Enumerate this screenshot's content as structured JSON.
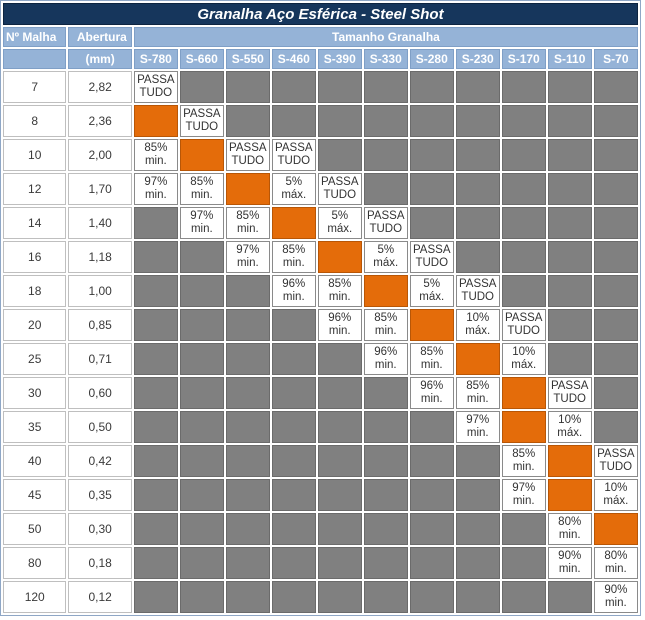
{
  "title": "Granalha Aço Esférica - Steel Shot",
  "header": {
    "mesh_label": "Nº Malha",
    "opening_label": "Abertura",
    "opening_unit": "(mm)",
    "sizes_label": "Tamanho Granalha"
  },
  "sizes": [
    "S-780",
    "S-660",
    "S-550",
    "S-460",
    "S-390",
    "S-330",
    "S-280",
    "S-230",
    "S-170",
    "S-110",
    "S-70"
  ],
  "colors": {
    "title_bg": "#16365c",
    "header_bg": "#95b3d7",
    "gray": "#808080",
    "orange": "#e46c0a"
  },
  "rows": [
    {
      "mesh": "7",
      "opening": "2,82",
      "cells": [
        [
          "PASSA",
          "TUDO"
        ],
        "g",
        "g",
        "g",
        "g",
        "g",
        "g",
        "g",
        "g",
        "g",
        "g"
      ]
    },
    {
      "mesh": "8",
      "opening": "2,36",
      "cells": [
        "o",
        [
          "PASSA",
          "TUDO"
        ],
        "g",
        "g",
        "g",
        "g",
        "g",
        "g",
        "g",
        "g",
        "g"
      ]
    },
    {
      "mesh": "10",
      "opening": "2,00",
      "cells": [
        [
          "85%",
          "min."
        ],
        "o",
        [
          "PASSA",
          "TUDO"
        ],
        [
          "PASSA",
          "TUDO"
        ],
        "g",
        "g",
        "g",
        "g",
        "g",
        "g",
        "g"
      ]
    },
    {
      "mesh": "12",
      "opening": "1,70",
      "cells": [
        [
          "97%",
          "min."
        ],
        [
          "85%",
          "min."
        ],
        "o",
        [
          "5%",
          "máx."
        ],
        [
          "PASSA",
          "TUDO"
        ],
        "g",
        "g",
        "g",
        "g",
        "g",
        "g"
      ]
    },
    {
      "mesh": "14",
      "opening": "1,40",
      "cells": [
        "g",
        [
          "97%",
          "min."
        ],
        [
          "85%",
          "min."
        ],
        "o",
        [
          "5%",
          "máx."
        ],
        [
          "PASSA",
          "TUDO"
        ],
        "g",
        "g",
        "g",
        "g",
        "g"
      ]
    },
    {
      "mesh": "16",
      "opening": "1,18",
      "cells": [
        "g",
        "g",
        [
          "97%",
          "min."
        ],
        [
          "85%",
          "min."
        ],
        "o",
        [
          "5%",
          "máx."
        ],
        [
          "PASSA",
          "TUDO"
        ],
        "g",
        "g",
        "g",
        "g"
      ]
    },
    {
      "mesh": "18",
      "opening": "1,00",
      "cells": [
        "g",
        "g",
        "g",
        [
          "96%",
          "min."
        ],
        [
          "85%",
          "min."
        ],
        "o",
        [
          "5%",
          "máx."
        ],
        [
          "PASSA",
          "TUDO"
        ],
        "g",
        "g",
        "g"
      ]
    },
    {
      "mesh": "20",
      "opening": "0,85",
      "cells": [
        "g",
        "g",
        "g",
        "g",
        [
          "96%",
          "min."
        ],
        [
          "85%",
          "min."
        ],
        "o",
        [
          "10%",
          "máx."
        ],
        [
          "PASSA",
          "TUDO"
        ],
        "g",
        "g"
      ]
    },
    {
      "mesh": "25",
      "opening": "0,71",
      "cells": [
        "g",
        "g",
        "g",
        "g",
        "g",
        [
          "96%",
          "min."
        ],
        [
          "85%",
          "min."
        ],
        "o",
        [
          "10%",
          "máx."
        ],
        "g",
        "g"
      ]
    },
    {
      "mesh": "30",
      "opening": "0,60",
      "cells": [
        "g",
        "g",
        "g",
        "g",
        "g",
        "g",
        [
          "96%",
          "min."
        ],
        [
          "85%",
          "min."
        ],
        "o",
        [
          "PASSA",
          "TUDO"
        ],
        "g"
      ]
    },
    {
      "mesh": "35",
      "opening": "0,50",
      "cells": [
        "g",
        "g",
        "g",
        "g",
        "g",
        "g",
        "g",
        [
          "97%",
          "min."
        ],
        "o",
        [
          "10%",
          "máx."
        ],
        "g"
      ]
    },
    {
      "mesh": "40",
      "opening": "0,42",
      "cells": [
        "g",
        "g",
        "g",
        "g",
        "g",
        "g",
        "g",
        "g",
        [
          "85%",
          "min."
        ],
        "o",
        [
          "PASSA",
          "TUDO"
        ]
      ]
    },
    {
      "mesh": "45",
      "opening": "0,35",
      "cells": [
        "g",
        "g",
        "g",
        "g",
        "g",
        "g",
        "g",
        "g",
        [
          "97%",
          "min."
        ],
        "o",
        [
          "10%",
          "máx."
        ]
      ]
    },
    {
      "mesh": "50",
      "opening": "0,30",
      "cells": [
        "g",
        "g",
        "g",
        "g",
        "g",
        "g",
        "g",
        "g",
        "g",
        [
          "80%",
          "min."
        ],
        "o"
      ]
    },
    {
      "mesh": "80",
      "opening": "0,18",
      "cells": [
        "g",
        "g",
        "g",
        "g",
        "g",
        "g",
        "g",
        "g",
        "g",
        [
          "90%",
          "min."
        ],
        [
          "80%",
          "min."
        ]
      ]
    },
    {
      "mesh": "120",
      "opening": "0,12",
      "cells": [
        "g",
        "g",
        "g",
        "g",
        "g",
        "g",
        "g",
        "g",
        "g",
        "g",
        [
          "90%",
          "min."
        ]
      ]
    }
  ]
}
